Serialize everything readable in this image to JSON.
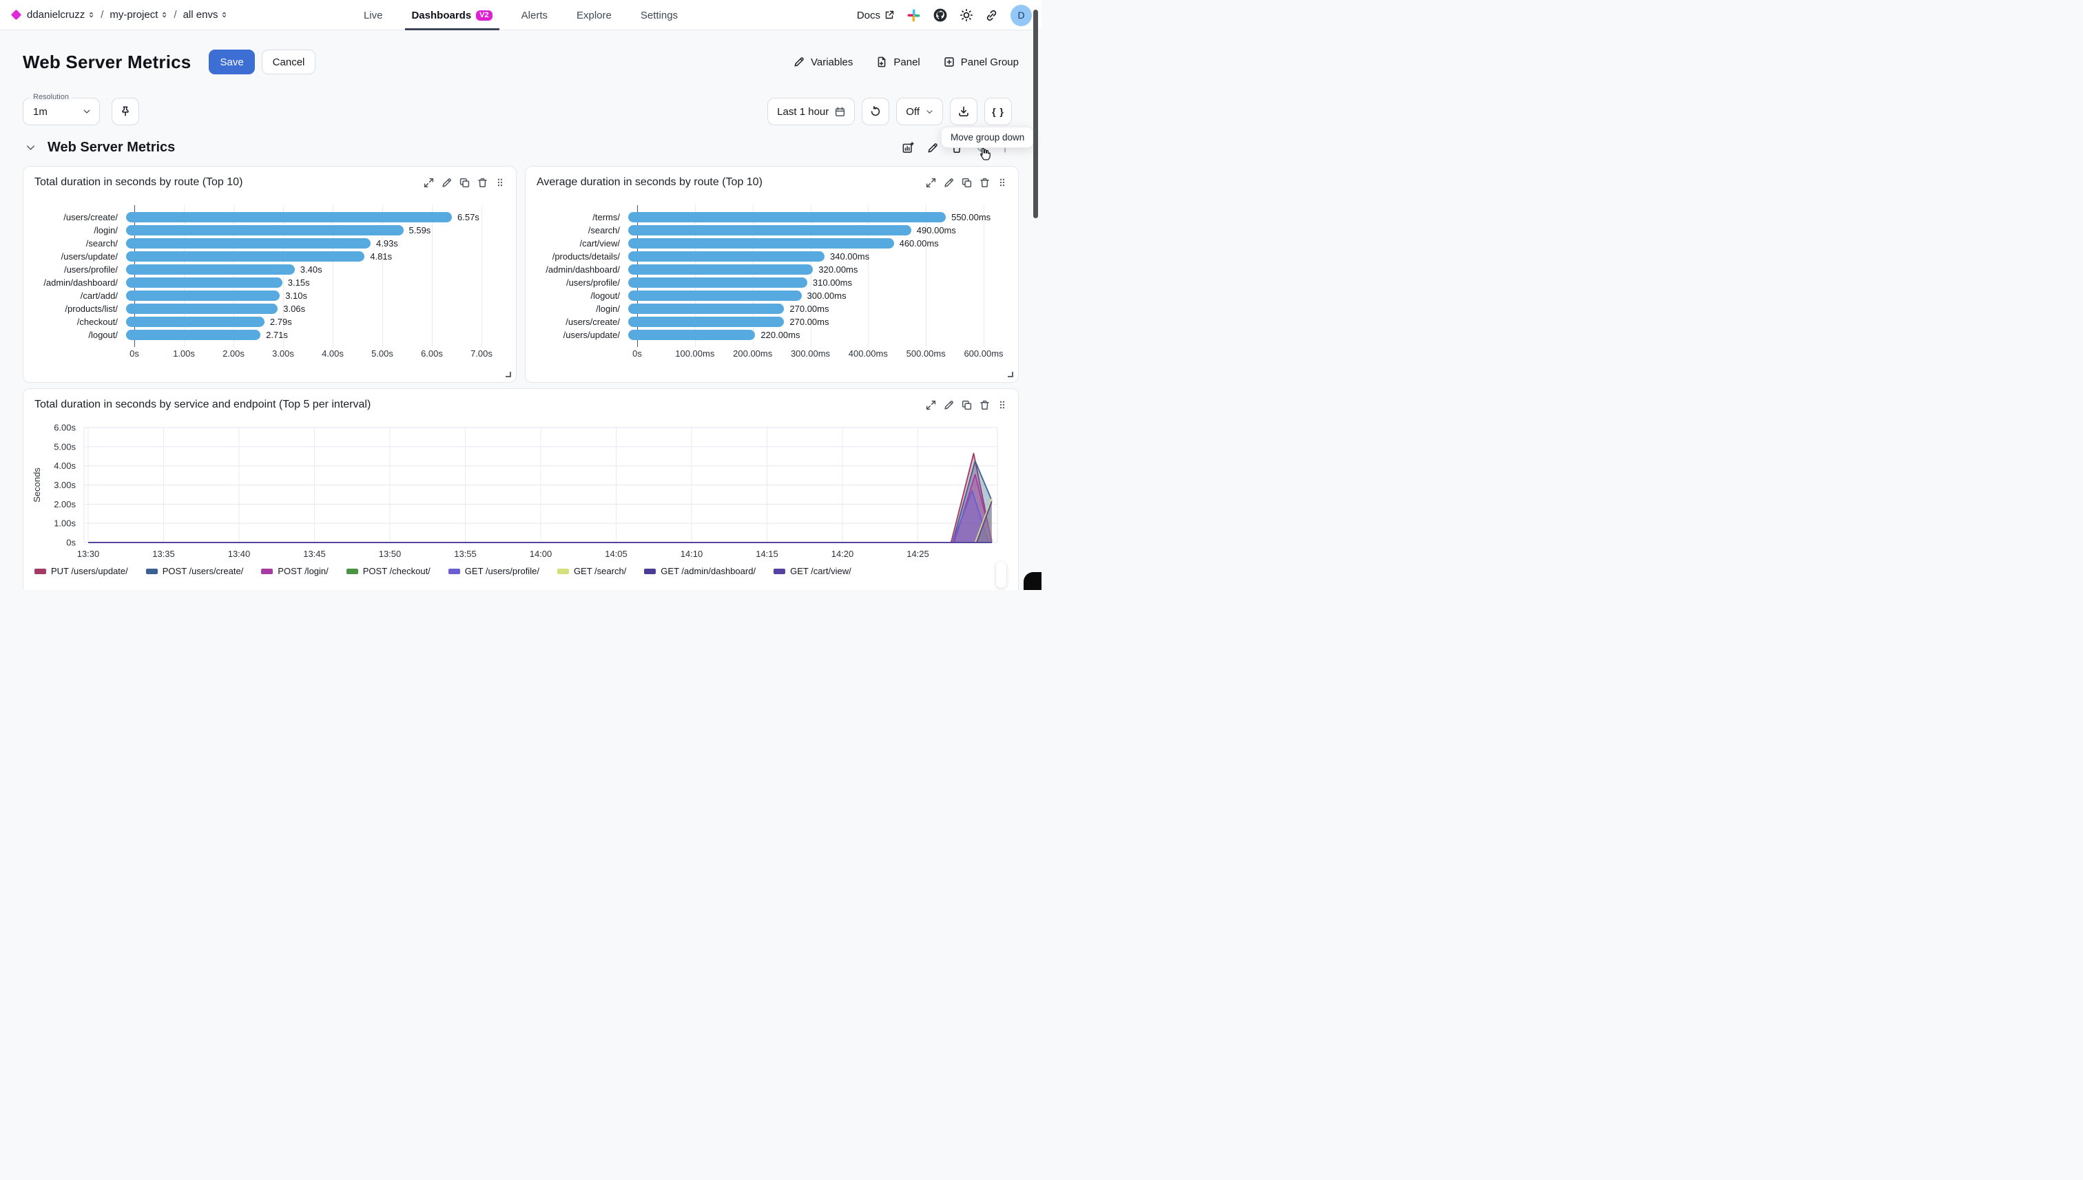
{
  "nav": {
    "breadcrumb": [
      "ddanielcruzz",
      "my-project",
      "all envs"
    ],
    "tabs": [
      {
        "label": "Live",
        "active": false
      },
      {
        "label": "Dashboards",
        "active": true,
        "badge": "V2"
      },
      {
        "label": "Alerts",
        "active": false
      },
      {
        "label": "Explore",
        "active": false
      },
      {
        "label": "Settings",
        "active": false
      }
    ],
    "docs_label": "Docs",
    "avatar_initial": "D"
  },
  "header": {
    "title": "Web Server Metrics",
    "save_label": "Save",
    "cancel_label": "Cancel",
    "actions": {
      "variables": "Variables",
      "panel": "Panel",
      "panel_group": "Panel Group"
    }
  },
  "toolbar": {
    "resolution_label": "Resolution",
    "resolution_value": "1m",
    "time_range": "Last 1 hour",
    "refresh_value": "Off",
    "braces_label": "{ }"
  },
  "tooltip_text": "Move group down",
  "group": {
    "title": "Web Server Metrics"
  },
  "colors": {
    "accent": "#3d6ed3",
    "brand": "#df2ad9",
    "bar": "#57aadf"
  },
  "chart_data": [
    {
      "type": "bar",
      "orientation": "horizontal",
      "title": "Total duration in seconds by route (Top 10)",
      "categories": [
        "/users/create/",
        "/login/",
        "/search/",
        "/users/update/",
        "/users/profile/",
        "/admin/dashboard/",
        "/cart/add/",
        "/products/list/",
        "/checkout/",
        "/logout/"
      ],
      "values": [
        6.57,
        5.59,
        4.93,
        4.81,
        3.4,
        3.15,
        3.1,
        3.06,
        2.79,
        2.71
      ],
      "value_labels": [
        "6.57s",
        "5.59s",
        "4.93s",
        "4.81s",
        "3.40s",
        "3.15s",
        "3.10s",
        "3.06s",
        "2.79s",
        "2.71s"
      ],
      "unit": "s",
      "xlim": [
        0,
        7
      ],
      "ticks": {
        "values": [
          0,
          1,
          2,
          3,
          4,
          5,
          6,
          7
        ],
        "labels": [
          "0s",
          "1.00s",
          "2.00s",
          "3.00s",
          "4.00s",
          "5.00s",
          "6.00s",
          "7.00s"
        ]
      },
      "bar_color": "#57aadf",
      "grid": true
    },
    {
      "type": "bar",
      "orientation": "horizontal",
      "title": "Average duration in seconds by route (Top 10)",
      "categories": [
        "/terms/",
        "/search/",
        "/cart/view/",
        "/products/details/",
        "/admin/dashboard/",
        "/users/profile/",
        "/logout/",
        "/login/",
        "/users/create/",
        "/users/update/"
      ],
      "values": [
        550,
        490,
        460,
        340,
        320,
        310,
        300,
        270,
        270,
        220
      ],
      "value_labels": [
        "550.00ms",
        "490.00ms",
        "460.00ms",
        "340.00ms",
        "320.00ms",
        "310.00ms",
        "300.00ms",
        "270.00ms",
        "270.00ms",
        "220.00ms"
      ],
      "unit": "ms",
      "xlim": [
        0,
        600
      ],
      "ticks": {
        "values": [
          0,
          100,
          200,
          300,
          400,
          500,
          600
        ],
        "labels": [
          "0s",
          "100.00ms",
          "200.00ms",
          "300.00ms",
          "400.00ms",
          "500.00ms",
          "600.00ms"
        ]
      },
      "bar_color": "#57aadf",
      "grid": true
    },
    {
      "type": "area",
      "title": "Total duration in seconds by service and endpoint (Top 5 per interval)",
      "ylabel": "Seconds",
      "ylim": [
        0,
        6
      ],
      "yticks": {
        "values": [
          0,
          1,
          2,
          3,
          4,
          5,
          6
        ],
        "labels": [
          "0s",
          "1.00s",
          "2.00s",
          "3.00s",
          "4.00s",
          "5.00s",
          "6.00s"
        ]
      },
      "xticks": {
        "values": [
          0,
          5,
          10,
          15,
          20,
          25,
          30,
          35,
          40,
          45,
          50,
          55
        ],
        "labels": [
          "13:30",
          "13:35",
          "13:40",
          "13:45",
          "13:50",
          "13:55",
          "14:00",
          "14:05",
          "14:10",
          "14:15",
          "14:20",
          "14:25"
        ]
      },
      "x_range_minutes": [
        0,
        60.3
      ],
      "grid": true,
      "legend_position": "bottom",
      "series": [
        {
          "name": "PUT /users/update/",
          "color": "#a13a64",
          "points": [
            [
              0,
              0
            ],
            [
              57.2,
              0
            ],
            [
              58.7,
              4.65
            ],
            [
              59.9,
              0
            ]
          ]
        },
        {
          "name": "POST /users/create/",
          "color": "#3a6191",
          "points": [
            [
              0,
              0
            ],
            [
              57.3,
              0
            ],
            [
              58.8,
              4.25
            ],
            [
              59.9,
              2.2
            ]
          ]
        },
        {
          "name": "POST /login/",
          "color": "#a73ba3",
          "points": [
            [
              0,
              0
            ],
            [
              57.4,
              0
            ],
            [
              58.8,
              3.55
            ],
            [
              59.9,
              0.1
            ]
          ]
        },
        {
          "name": "POST /checkout/",
          "color": "#4b9343",
          "points": [
            [
              0,
              0
            ],
            [
              59.9,
              0
            ]
          ]
        },
        {
          "name": "GET /users/profile/",
          "color": "#6a5ed2",
          "points": [
            [
              0,
              0
            ],
            [
              57.3,
              0
            ],
            [
              58.6,
              2.7
            ],
            [
              59.7,
              0
            ]
          ]
        },
        {
          "name": "GET /search/",
          "color": "#d5e07a",
          "points": [
            [
              0,
              0
            ],
            [
              58.8,
              0
            ],
            [
              59.9,
              2.3
            ]
          ]
        },
        {
          "name": "GET /admin/dashboard/",
          "color": "#4b3b98",
          "points": [
            [
              0,
              0
            ],
            [
              59.9,
              0
            ]
          ]
        },
        {
          "name": "GET /cart/view/",
          "color": "#55419f",
          "points": [
            [
              0,
              0
            ],
            [
              58.9,
              0
            ],
            [
              59.9,
              2.15
            ]
          ]
        }
      ]
    }
  ]
}
